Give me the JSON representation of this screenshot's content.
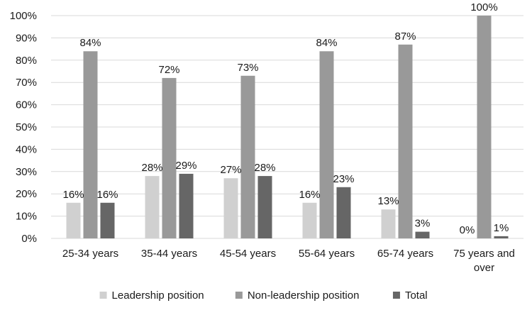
{
  "chart_data": {
    "type": "bar",
    "title": "",
    "xlabel": "",
    "ylabel": "",
    "ylim": [
      0,
      100
    ],
    "y_ticks": [
      0,
      10,
      20,
      30,
      40,
      50,
      60,
      70,
      80,
      90,
      100
    ],
    "y_tick_suffix": "%",
    "grid": true,
    "legend_position": "bottom",
    "categories": [
      [
        "25-34 years"
      ],
      [
        "35-44 years"
      ],
      [
        "45-54 years"
      ],
      [
        "55-64 years"
      ],
      [
        "65-74 years"
      ],
      [
        "75 years and",
        "over"
      ]
    ],
    "series": [
      {
        "name": "Leadership position",
        "color": "#d0d0d0",
        "values": [
          16,
          28,
          27,
          16,
          13,
          0
        ]
      },
      {
        "name": "Non-leadership position",
        "color": "#999999",
        "values": [
          84,
          72,
          73,
          84,
          87,
          100
        ]
      },
      {
        "name": "Total",
        "color": "#666666",
        "values": [
          16,
          29,
          28,
          23,
          3,
          1
        ]
      }
    ]
  }
}
